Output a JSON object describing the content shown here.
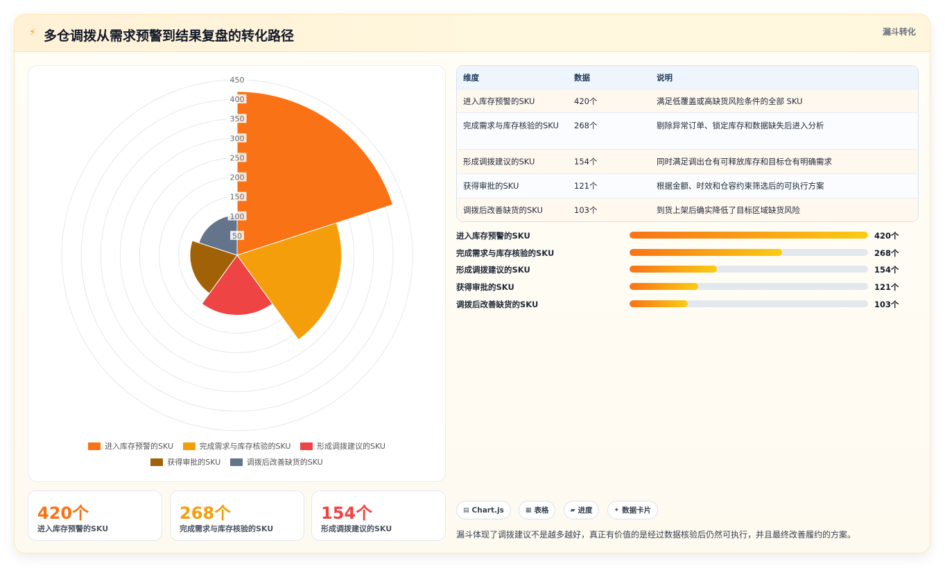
{
  "header": {
    "icon": "lightning-icon",
    "title": "多仓调拨从需求预警到结果复盘的转化路径",
    "tag": "漏斗转化"
  },
  "chart_data": {
    "type": "polarArea",
    "categories": [
      "进入库存预警的SKU",
      "完成需求与库存核验的SKU",
      "形成调拨建议的SKU",
      "获得审批的SKU",
      "调拨后改善缺货的SKU"
    ],
    "values": [
      420,
      268,
      154,
      121,
      103
    ],
    "colors": [
      "#f97316",
      "#f59e0b",
      "#ef4444",
      "#a16207",
      "#64748b"
    ],
    "rmax": 450,
    "ticks": [
      0,
      50,
      100,
      150,
      200,
      250,
      300,
      350,
      400,
      450
    ],
    "legend": "bottom"
  },
  "table": {
    "headers": [
      "维度",
      "数据",
      "说明"
    ],
    "rows": [
      {
        "dim": "进入库存预警的SKU",
        "val": "420个",
        "desc": "满足低覆盖或高缺货风险条件的全部 SKU"
      },
      {
        "dim": "完成需求与库存核验的SKU",
        "val": "268个",
        "desc": "剔除异常订单、锁定库存和数据缺失后进入分析"
      },
      {
        "dim": "形成调拨建议的SKU",
        "val": "154个",
        "desc": "同时满足调出仓有可释放库存和目标仓有明确需求"
      },
      {
        "dim": "获得审批的SKU",
        "val": "121个",
        "desc": "根据金额、时效和仓容约束筛选后的可执行方案"
      },
      {
        "dim": "调拨后改善缺货的SKU",
        "val": "103个",
        "desc": "到货上架后确实降低了目标区域缺货风险"
      }
    ]
  },
  "progress": {
    "max": 420,
    "rows": [
      {
        "label": "进入库存预警的SKU",
        "value": 420,
        "text": "420个"
      },
      {
        "label": "完成需求与库存核验的SKU",
        "value": 268,
        "text": "268个"
      },
      {
        "label": "形成调拨建议的SKU",
        "value": 154,
        "text": "154个"
      },
      {
        "label": "获得审批的SKU",
        "value": 121,
        "text": "121个"
      },
      {
        "label": "调拨后改善缺货的SKU",
        "value": 103,
        "text": "103个"
      }
    ]
  },
  "kpis": [
    {
      "num": "420个",
      "label": "进入库存预警的SKU",
      "color": "#f97316"
    },
    {
      "num": "268个",
      "label": "完成需求与库存核验的SKU",
      "color": "#f59e0b"
    },
    {
      "num": "154个",
      "label": "形成调拨建议的SKU",
      "color": "#ef4444"
    }
  ],
  "pills": [
    {
      "icon": "chart-icon",
      "label": "Chart.js"
    },
    {
      "icon": "table-icon",
      "label": "表格"
    },
    {
      "icon": "progress-icon",
      "label": "进度"
    },
    {
      "icon": "sparkle-icon",
      "label": "数据卡片"
    }
  ],
  "footnote": "漏斗体现了调拨建议不是越多越好，真正有价值的是经过数据核验后仍然可执行，并且最终改善履约的方案。"
}
